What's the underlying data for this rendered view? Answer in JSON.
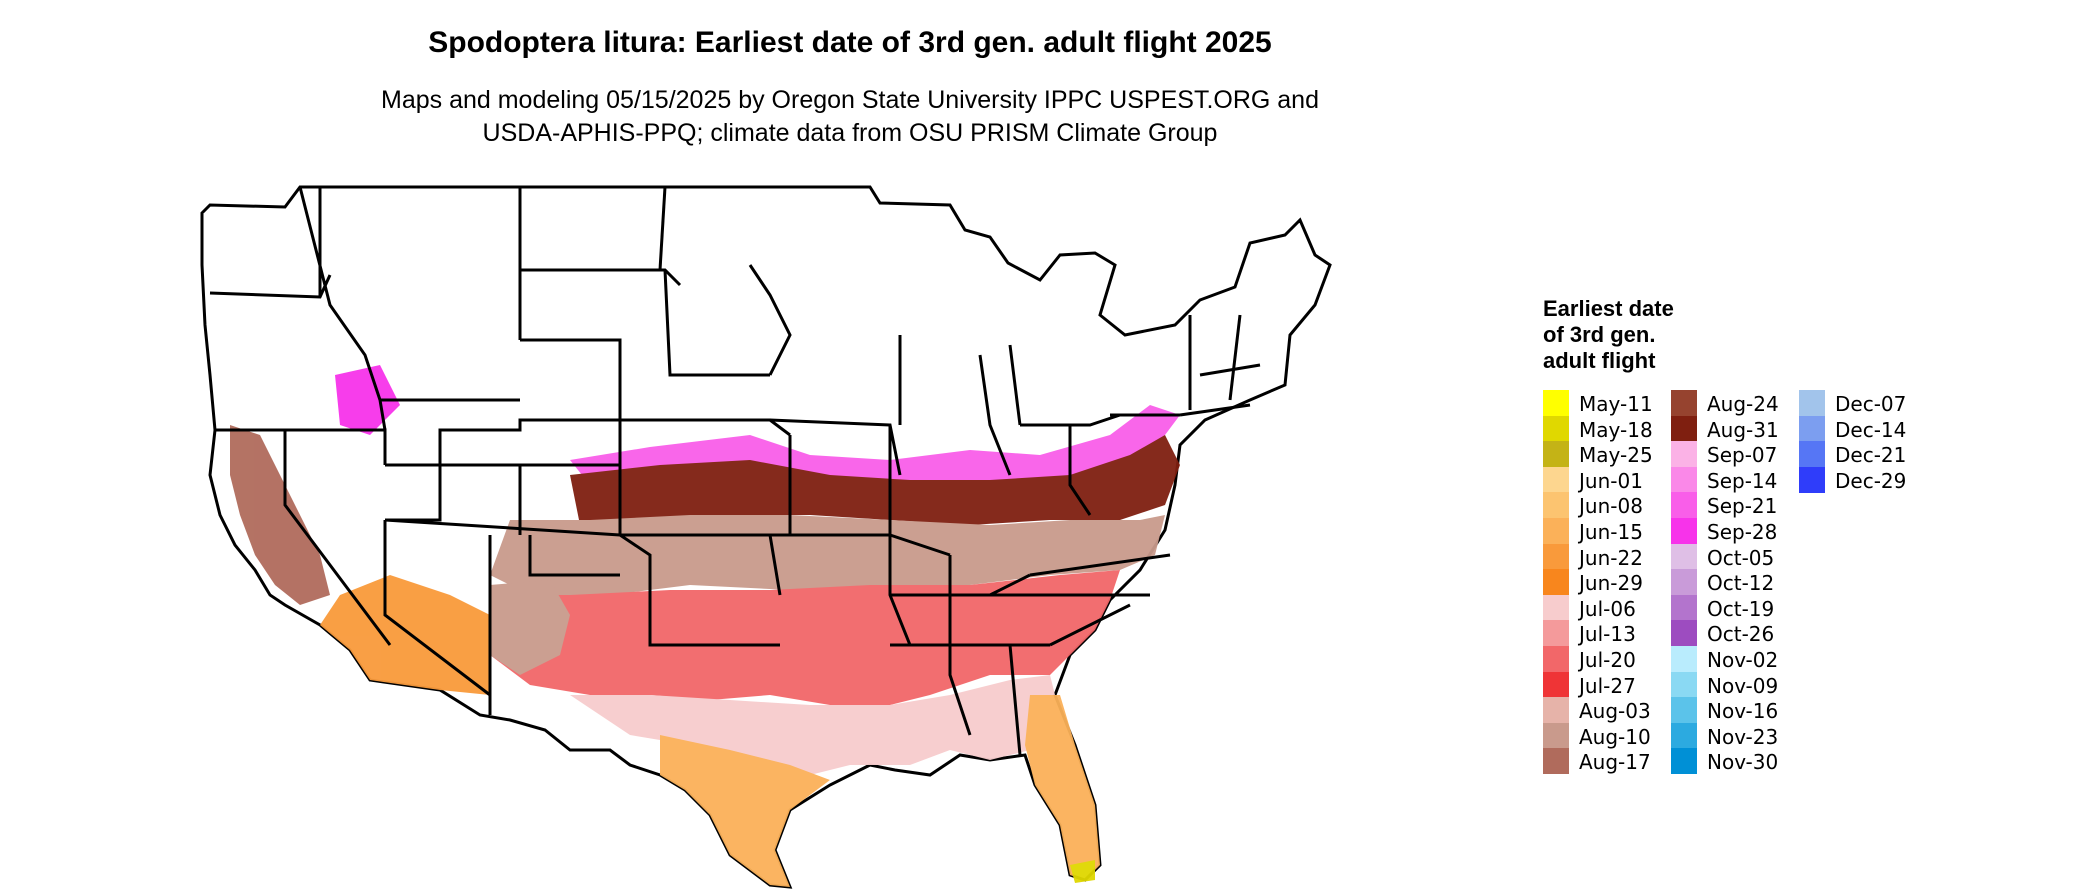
{
  "title": "Spodoptera litura: Earliest date of 3rd gen. adult flight 2025",
  "subtitle_line1": "Maps and modeling 05/15/2025 by Oregon State University IPPC USPEST.ORG and",
  "subtitle_line2": "USDA-APHIS-PPQ; climate data from OSU PRISM Climate Group",
  "legend": {
    "title_line1": "Earliest date",
    "title_line2": "of 3rd gen.",
    "title_line3": "adult flight",
    "columns": [
      [
        {
          "label": "May-11",
          "color": "#ffff00"
        },
        {
          "label": "May-18",
          "color": "#e0d800"
        },
        {
          "label": "May-25",
          "color": "#c4b316"
        },
        {
          "label": "Jun-01",
          "color": "#fdd68f"
        },
        {
          "label": "Jun-08",
          "color": "#fcc470"
        },
        {
          "label": "Jun-15",
          "color": "#fbb159"
        },
        {
          "label": "Jun-22",
          "color": "#f99a3b"
        },
        {
          "label": "Jun-29",
          "color": "#f8861d"
        },
        {
          "label": "Jul-06",
          "color": "#f7cccd"
        },
        {
          "label": "Jul-13",
          "color": "#f49a9b"
        },
        {
          "label": "Jul-20",
          "color": "#f26769"
        },
        {
          "label": "Jul-27",
          "color": "#ef3436"
        },
        {
          "label": "Aug-03",
          "color": "#e6b3a9"
        },
        {
          "label": "Aug-10",
          "color": "#c99a8c"
        },
        {
          "label": "Aug-17",
          "color": "#b06b5c"
        }
      ],
      [
        {
          "label": "Aug-24",
          "color": "#96432f"
        },
        {
          "label": "Aug-31",
          "color": "#7f1f10"
        },
        {
          "label": "Sep-07",
          "color": "#fbb2e6"
        },
        {
          "label": "Sep-14",
          "color": "#fa88e8"
        },
        {
          "label": "Sep-21",
          "color": "#f95ee9"
        },
        {
          "label": "Sep-28",
          "color": "#f733ea"
        },
        {
          "label": "Oct-05",
          "color": "#dfbfe6"
        },
        {
          "label": "Oct-12",
          "color": "#c99bd9"
        },
        {
          "label": "Oct-19",
          "color": "#b374cd"
        },
        {
          "label": "Oct-26",
          "color": "#9d4cc0"
        },
        {
          "label": "Nov-02",
          "color": "#b9ecfd"
        },
        {
          "label": "Nov-09",
          "color": "#8ad9f3"
        },
        {
          "label": "Nov-16",
          "color": "#5bc3ea"
        },
        {
          "label": "Nov-23",
          "color": "#2caae0"
        },
        {
          "label": "Nov-30",
          "color": "#0090d6"
        }
      ],
      [
        {
          "label": "Dec-07",
          "color": "#a2c4eb"
        },
        {
          "label": "Dec-14",
          "color": "#7c9ef0"
        },
        {
          "label": "Dec-21",
          "color": "#5676f5"
        },
        {
          "label": "Dec-29",
          "color": "#2f3dfa"
        }
      ]
    ]
  },
  "map": {
    "region": "contiguous-us",
    "state_border_color": "#000000",
    "background_color": "#ffffff"
  }
}
